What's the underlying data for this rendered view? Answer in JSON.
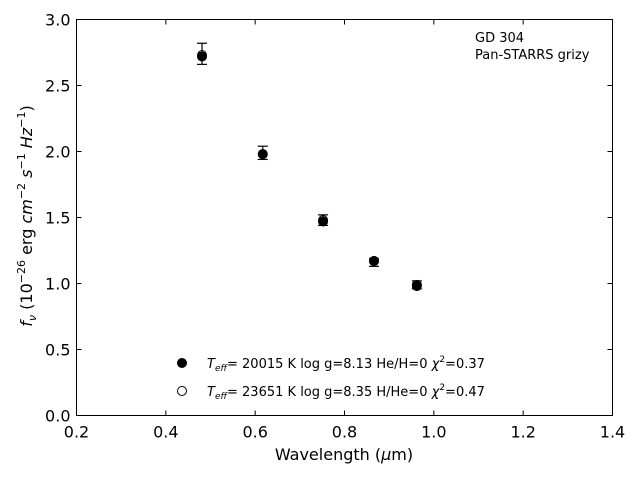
{
  "chart_data": {
    "type": "scatter",
    "title": "",
    "xlabel": "Wavelength (μm)",
    "ylabel": "f_ν (10^-26 erg cm^-2 s^-1 Hz^-1)",
    "xlim": [
      0.2,
      1.4
    ],
    "ylim": [
      0.0,
      3.0
    ],
    "xticks": [
      "0.2",
      "0.4",
      "0.6",
      "0.8",
      "1.0",
      "1.2",
      "1.4"
    ],
    "yticks": [
      "0.0",
      "0.5",
      "1.0",
      "1.5",
      "2.0",
      "2.5",
      "3.0"
    ],
    "grid": false,
    "annotation": {
      "line1": "GD 304",
      "line2": "Pan-STARRS grizy"
    },
    "observed": {
      "x": [
        0.481,
        0.617,
        0.752,
        0.866,
        0.962
      ],
      "y": [
        2.74,
        1.99,
        1.48,
        1.16,
        0.99
      ],
      "yerr": [
        0.08,
        0.05,
        0.04,
        0.03,
        0.03
      ]
    },
    "series": [
      {
        "name": "Teff= 20015 K  log g=8.13  He/H=0  χ2=0.37",
        "marker": "filled",
        "color": "#000000",
        "x": [
          0.481,
          0.617,
          0.752,
          0.866,
          0.962
        ],
        "y": [
          2.72,
          1.98,
          1.47,
          1.17,
          0.98
        ]
      },
      {
        "name": "Teff= 23651 K  log g=8.35  H/He=0  χ2=0.47",
        "marker": "open",
        "color": "#000000",
        "x": [
          0.481,
          0.617,
          0.752,
          0.866,
          0.962
        ],
        "y": [
          2.73,
          1.98,
          1.48,
          1.17,
          0.99
        ]
      }
    ],
    "legend": {
      "placement": "lower-center",
      "entries": [
        {
          "teff_label": "T",
          "teff_sub": "eff",
          "teff_value": "= 20015 K",
          "logg": "log g=8.13",
          "comp": "He/H=0",
          "chi_label": "χ",
          "chi_sup": "2",
          "chi_value": "=0.37"
        },
        {
          "teff_label": "T",
          "teff_sub": "eff",
          "teff_value": "= 23651 K",
          "logg": "log g=8.35",
          "comp": "H/He=0",
          "chi_label": "χ",
          "chi_sup": "2",
          "chi_value": "=0.47"
        }
      ]
    }
  }
}
